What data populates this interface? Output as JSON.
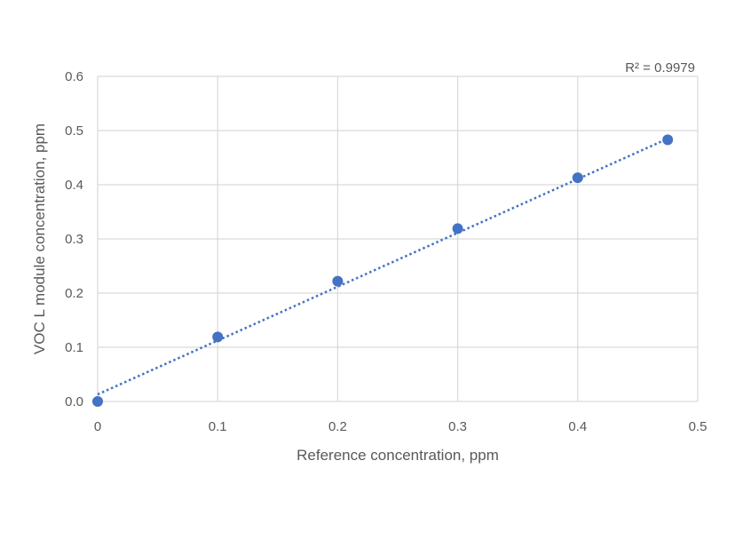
{
  "chart_data": {
    "type": "scatter",
    "xlabel": "Reference concentration, ppm",
    "ylabel": "VOC L module concentration, ppm",
    "xlim": [
      0,
      0.5
    ],
    "ylim": [
      0,
      0.6
    ],
    "x_ticks": [
      0,
      0.1,
      0.2,
      0.3,
      0.4,
      0.5
    ],
    "x_tick_labels": [
      "0",
      "0.1",
      "0.2",
      "0.3",
      "0.4",
      "0.5"
    ],
    "y_ticks": [
      0,
      0.1,
      0.2,
      0.3,
      0.4,
      0.5,
      0.6
    ],
    "y_tick_labels": [
      "0.0",
      "0.1",
      "0.2",
      "0.3",
      "0.4",
      "0.5",
      "0.6"
    ],
    "grid": true,
    "series": [
      {
        "x": [
          0,
          0.1,
          0.2,
          0.3,
          0.4,
          0.475
        ],
        "y": [
          0,
          0.119,
          0.222,
          0.319,
          0.413,
          0.483
        ],
        "color": "#4472C4",
        "marker": "circle"
      }
    ],
    "trendline": {
      "type": "linear",
      "style": "dotted",
      "color": "#4472C4",
      "x_range": [
        0,
        0.475
      ],
      "y_range": [
        0.013,
        0.485
      ]
    },
    "annotations": [
      {
        "text": "R² = 0.9979",
        "position": "top-right"
      }
    ],
    "colors": {
      "grid": "#d9d9d9",
      "text": "#595959"
    }
  }
}
